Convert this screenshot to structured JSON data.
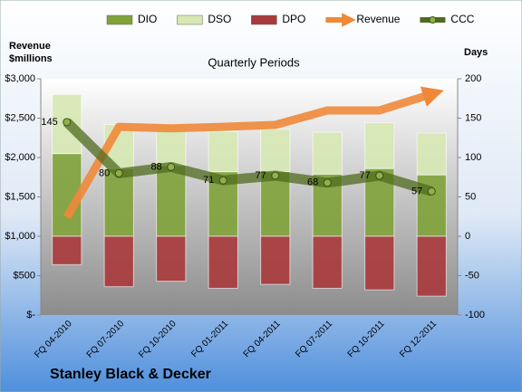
{
  "chart_data": {
    "type": "bar",
    "title": "Quarterly Periods",
    "company": "Stanley Black & Decker",
    "y_label": "Revenue $millions",
    "y2_label": "Days",
    "categories": [
      "FQ 04-2010",
      "FQ 07-2010",
      "FQ 10-2010",
      "FQ 01-2011",
      "FQ 04-2011",
      "FQ 07-2011",
      "FQ 10-2011",
      "FQ 12-2011"
    ],
    "series": [
      {
        "name": "DIO",
        "type": "bar",
        "axis": "y2",
        "color": "#7fa23a",
        "values": [
          105,
          86,
          90,
          82,
          82,
          79,
          86,
          78
        ]
      },
      {
        "name": "DSO",
        "type": "bar",
        "axis": "y2",
        "color": "#d7e8b2",
        "values": [
          75,
          56,
          52,
          51,
          54,
          53,
          58,
          53
        ]
      },
      {
        "name": "DPO",
        "type": "bar",
        "axis": "y2",
        "color": "#a8393c",
        "values": [
          -36,
          -64,
          -57,
          -66,
          -61,
          -66,
          -68,
          -76
        ]
      },
      {
        "name": "Revenue",
        "type": "line",
        "axis": "y",
        "color": "#f0883a",
        "values": [
          1241,
          2390,
          2370,
          2390,
          2414,
          2598,
          2598,
          2805
        ]
      },
      {
        "name": "CCC",
        "type": "line",
        "axis": "y2",
        "color": "#4f6b1f",
        "values": [
          145,
          80,
          88,
          71,
          77,
          68,
          77,
          57
        ]
      }
    ],
    "ylim": [
      0,
      3000
    ],
    "yticks": [
      {
        "value": 0,
        "label": "$-"
      },
      {
        "value": 500,
        "label": "$500"
      },
      {
        "value": 1000,
        "label": "$1,000"
      },
      {
        "value": 1500,
        "label": "$1,500"
      },
      {
        "value": 2000,
        "label": "$2,000"
      },
      {
        "value": 2500,
        "label": "$2,500"
      },
      {
        "value": 3000,
        "label": "$3,000"
      }
    ],
    "y2lim": [
      -100,
      200
    ],
    "y2ticks": [
      -100,
      -50,
      0,
      50,
      100,
      150,
      200
    ]
  }
}
